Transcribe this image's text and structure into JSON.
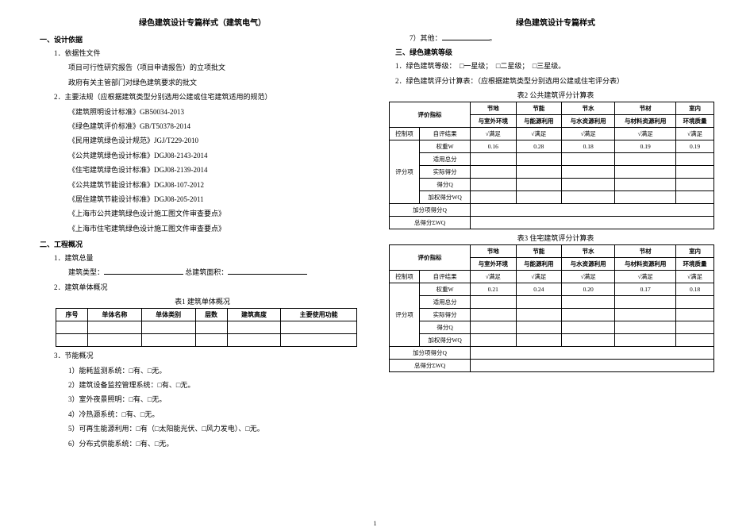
{
  "left": {
    "title": "绿色建筑设计专篇样式（建筑电气）",
    "sec1_heading": "一、设计依据",
    "sec1_1": "1．依据性文件",
    "sec1_1_a": "项目可行性研究报告（项目申请报告）的立项批文",
    "sec1_1_b": "政府有关主管部门对绿色建筑要求的批文",
    "sec1_2": "2．主要法规（应根据建筑类型分别选用公建或住宅建筑适用的规范）",
    "sec1_2_a": "《建筑照明设计标准》GB50034-2013",
    "sec1_2_b": "《绿色建筑评价标准》GB/T50378-2014",
    "sec1_2_c": "《民用建筑绿色设计规范》JGJ/T229-2010",
    "sec1_2_d": "《公共建筑绿色设计标准》DGJ08-2143-2014",
    "sec1_2_e": "《住宅建筑绿色设计标准》DGJ08-2139-2014",
    "sec1_2_f": "《公共建筑节能设计标准》DGJ08-107-2012",
    "sec1_2_g": "《居住建筑节能设计标准》DGJ08-205-2011",
    "sec1_2_h": "《上海市公共建筑绿色设计施工图文件审查要点》",
    "sec1_2_i": "《上海市住宅建筑绿色设计施工图文件审查要点》",
    "sec2_heading": "二、工程概况",
    "sec2_1": "1．建筑总量",
    "sec2_1_line": "建筑类型：",
    "sec2_1_line2": "总建筑面积：",
    "sec2_2": "2．建筑单体概况",
    "table1_caption": "表1 建筑单体概况",
    "table1_headers": [
      "序号",
      "单体名称",
      "单体类别",
      "层数",
      "建筑高度",
      "主要使用功能"
    ],
    "sec3": "3．节能概况",
    "sec3_1": "1）能耗监测系统：□有、□无。",
    "sec3_2": "2）建筑设备监控管理系统：□有、□无。",
    "sec3_3": "3）室外夜景照明：□有、□无。",
    "sec3_4": "4）冷热源系统：□有、□无。",
    "sec3_5": "5）可再生能源利用：□有（□太阳能光伏、□风力发电）、□无。",
    "sec3_6": "6）分布式供能系统：□有、□无。"
  },
  "right": {
    "title": "绿色建筑设计专篇样式",
    "item7": "7）其他：",
    "sec3_heading": "三、绿色建筑等级",
    "sec3_1": "1．绿色建筑等级：　□一星级；　□二星级；　□三星级。",
    "sec3_2": "2．绿色建筑评分计算表：（应根据建筑类型分别选用公建或住宅评分表）",
    "table2_caption": "表2 公共建筑评分计算表",
    "table3_caption": "表3 住宅建筑评分计算表",
    "eval_indicator": "评价指标",
    "col1": "节地\n与室外环境",
    "col2": "节能\n与能源利用",
    "col3": "节水\n与水资源利用",
    "col4": "节材\n与材料资源利用",
    "col5": "室内\n环境质量",
    "control_row": "控制项",
    "self_eval": "自评结果",
    "satisfy": "√满足",
    "eval_row": "评分项",
    "weight_w": "权重W",
    "apply_total": "适用总分",
    "actual_score": "实际得分",
    "score_q": "得分Q",
    "weighted_wq": "加权得分WQ",
    "bonus_q": "加分项得分Q",
    "total_wq": "总得分ΣWQ",
    "t2_weights": [
      "0.16",
      "0.28",
      "0.18",
      "0.19",
      "0.19"
    ],
    "t3_weights": [
      "0.21",
      "0.24",
      "0.20",
      "0.17",
      "0.18"
    ]
  },
  "page_num": "1"
}
